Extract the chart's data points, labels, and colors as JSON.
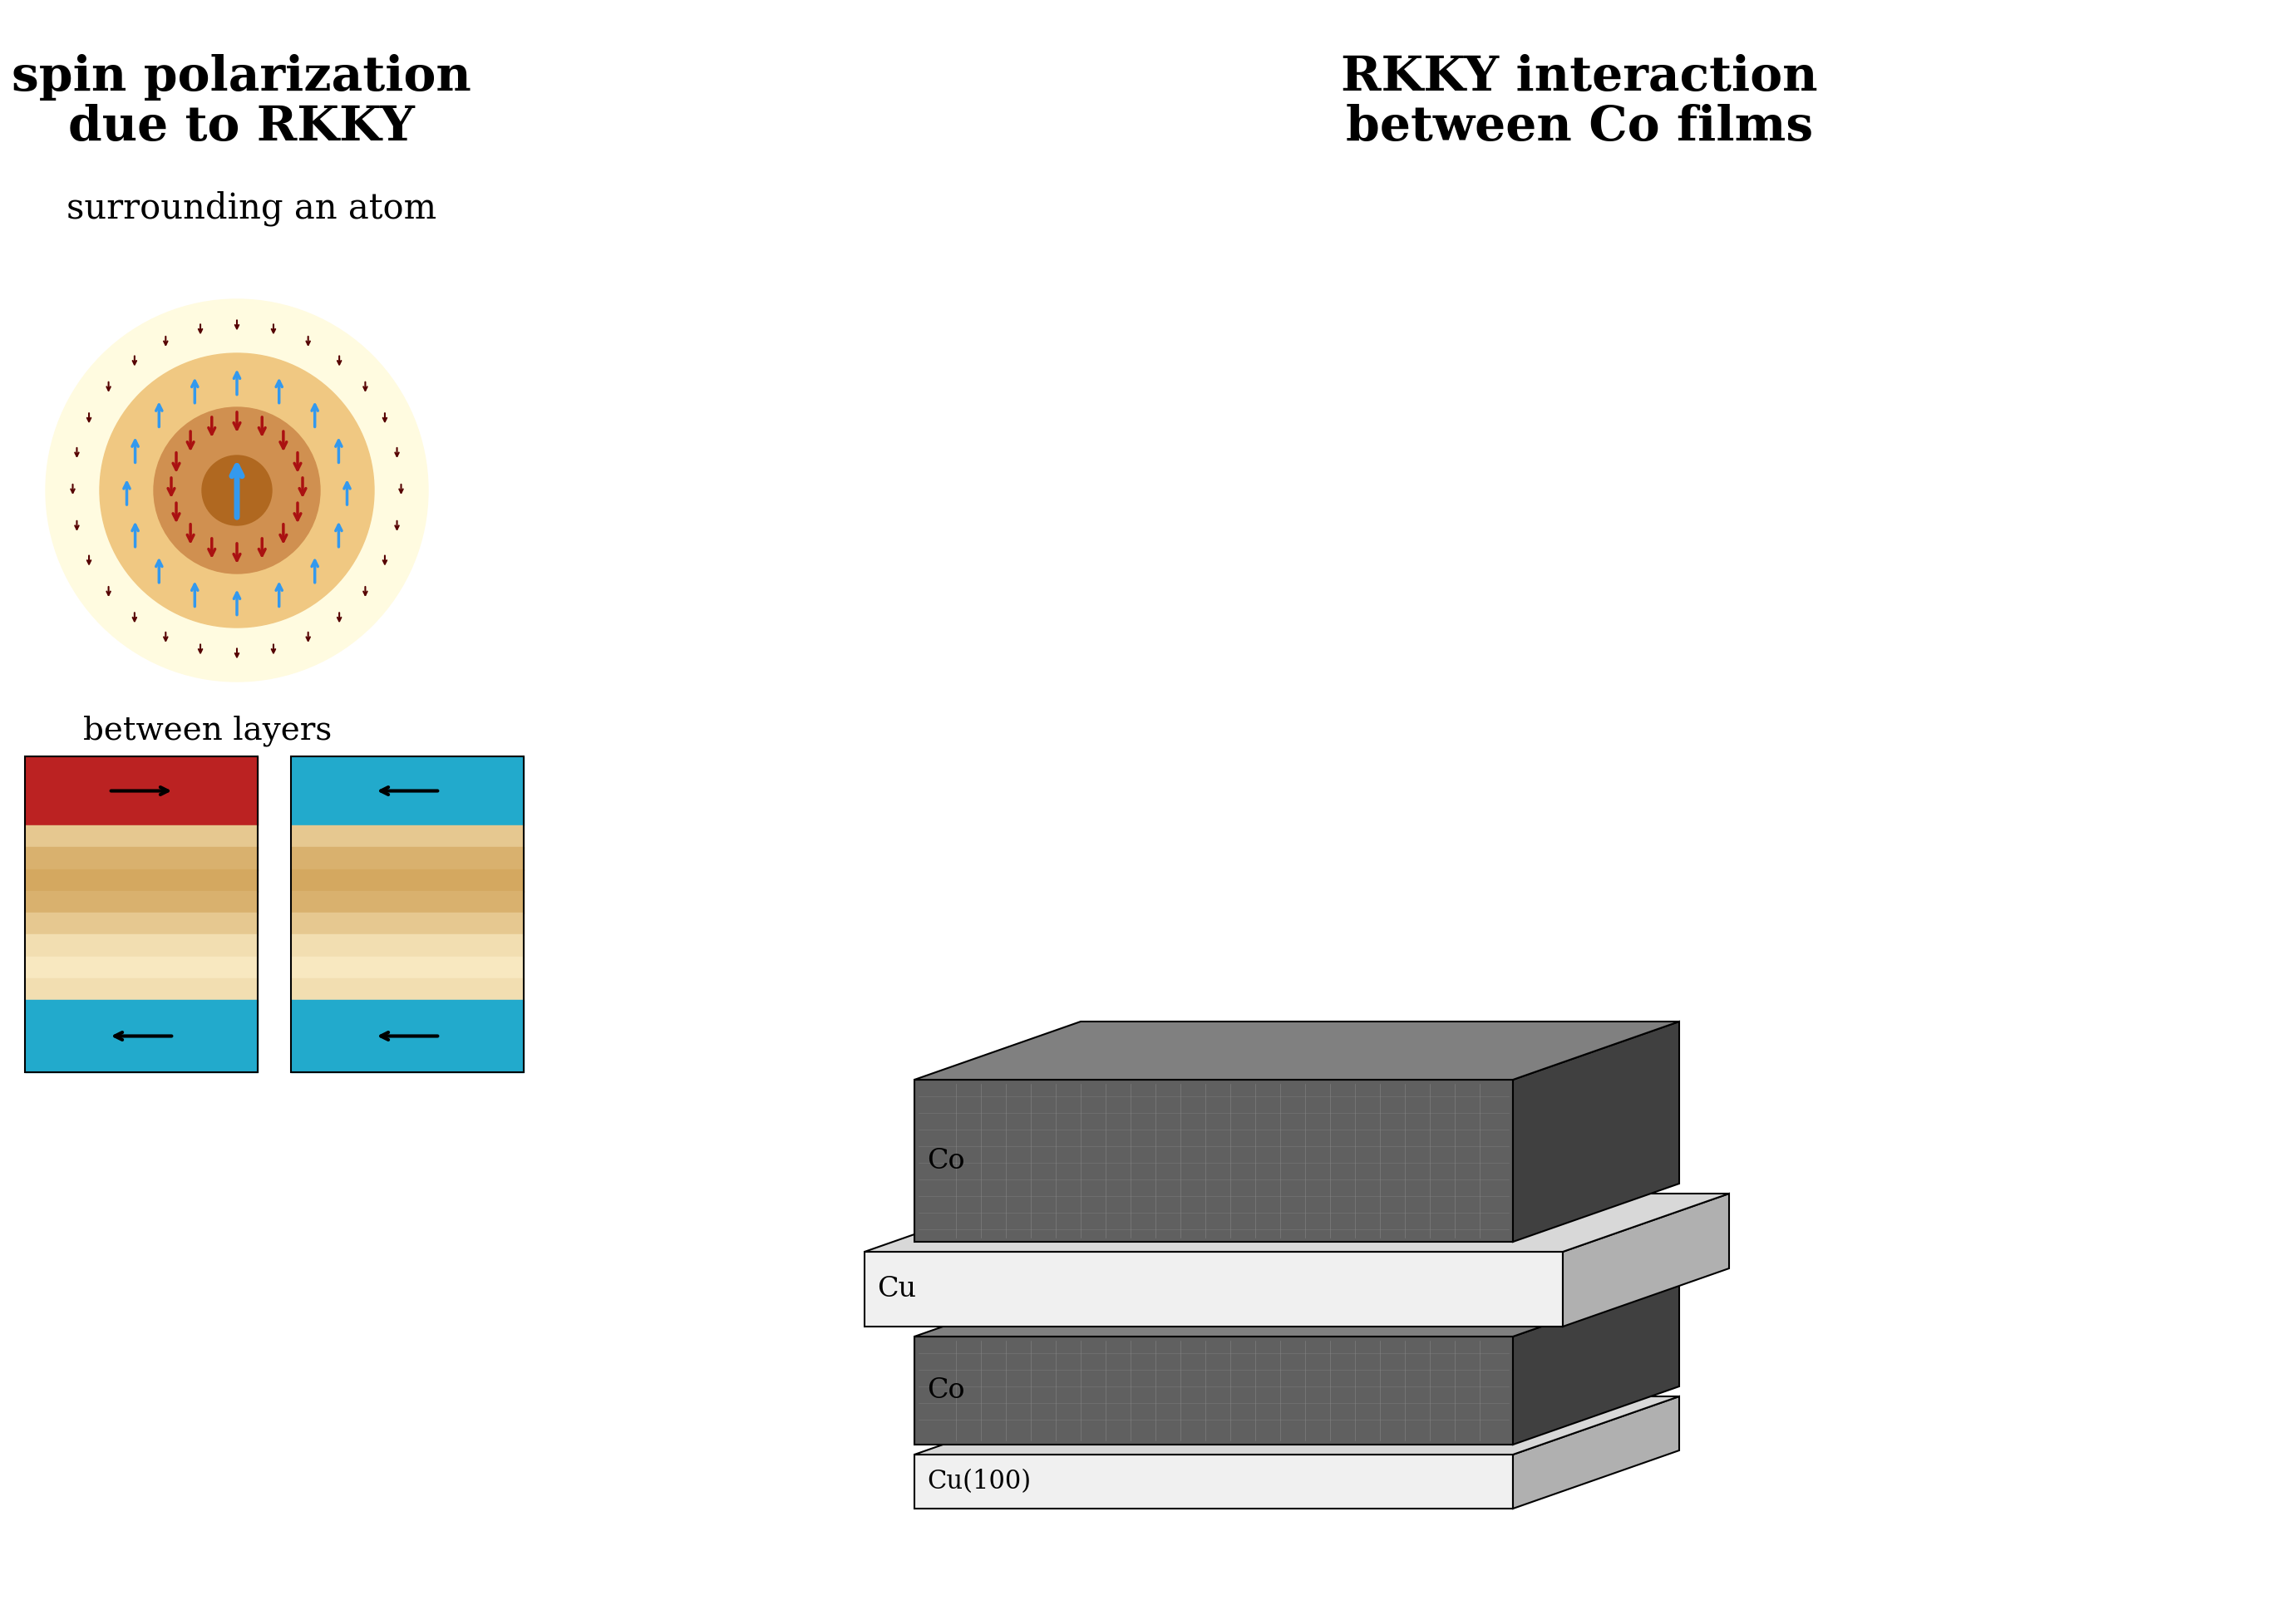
{
  "bg_color": "#ffffff",
  "left_title_line1": "spin polarization",
  "left_title_line2": "due to RKKY",
  "subtitle_atom": "surrounding an atom",
  "subtitle_layers": "between layers",
  "right_title_line1": "RKKY interaction",
  "right_title_line2": "between Co films",
  "circle_outer_color": "#FFFBE0",
  "circle_mid_color": "#F0C882",
  "circle_inner_dark_color": "#D09050",
  "circle_center_color": "#B06820",
  "arrow_up_blue": "#3399EE",
  "arrow_down_red": "#AA1111",
  "arrow_tiny_color": "#550000",
  "layer_red_color": "#BB2222",
  "layer_blue_color": "#22AACC",
  "layer_tan_light": "#F8E8C0",
  "layer_tan_dark": "#D4A860",
  "title_fontsize": 42,
  "subtitle_fontsize": 30,
  "between_fontsize": 28
}
